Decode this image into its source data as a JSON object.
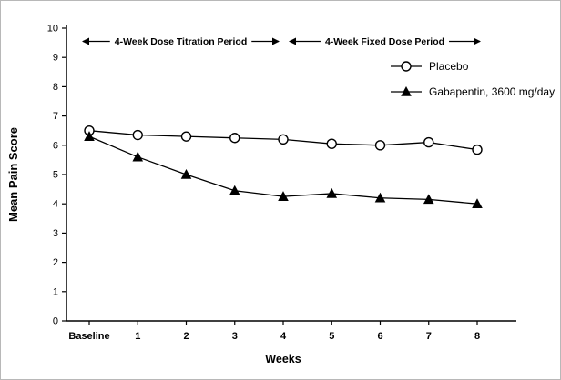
{
  "chart_data": {
    "type": "line",
    "categories": [
      "Baseline",
      "1",
      "2",
      "3",
      "4",
      "5",
      "6",
      "7",
      "8"
    ],
    "series": [
      {
        "name": "Placebo",
        "marker": "circle-open",
        "color": "#000000",
        "values": [
          6.5,
          6.35,
          6.3,
          6.25,
          6.2,
          6.05,
          6.0,
          6.1,
          5.85
        ]
      },
      {
        "name": "Gabapentin, 3600 mg/day",
        "marker": "triangle-filled",
        "color": "#000000",
        "values": [
          6.3,
          5.6,
          5.0,
          4.45,
          4.25,
          4.35,
          4.2,
          4.15,
          4.0
        ]
      }
    ],
    "title": "",
    "xlabel": "Weeks",
    "ylabel": "Mean Pain Score",
    "ylim": [
      0,
      10
    ],
    "ytick_step": 1,
    "grid": false,
    "legend_position": "upper-right",
    "annotations": [
      {
        "text": "4-Week Dose Titration Period",
        "x_start": 0,
        "x_end": 4,
        "y": 9.55
      },
      {
        "text": "4-Week Fixed Dose Period",
        "x_start": 4,
        "x_end": 8,
        "y": 9.55
      }
    ],
    "axis_color": "#000000",
    "background": "#ffffff"
  }
}
